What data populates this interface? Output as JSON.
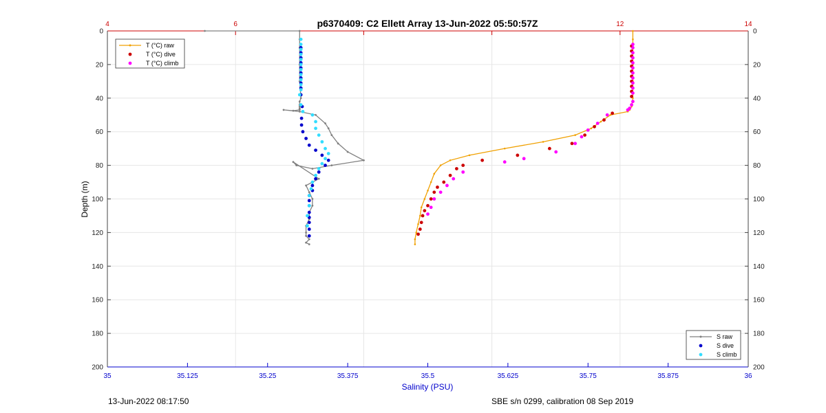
{
  "chart_data": {
    "type": "scatter",
    "title": "p6370409: C2 Ellett Array 13-Jun-2022 05:50:57Z",
    "xlabel": "Salinity (PSU)",
    "ylabel": "Depth (m)",
    "x_bottom_range": [
      35,
      36
    ],
    "x_bottom_ticks": [
      "35",
      "35.125",
      "35.25",
      "35.375",
      "35.5",
      "35.625",
      "35.75",
      "35.875",
      "36"
    ],
    "x_top_range": [
      4,
      14
    ],
    "x_top_ticks": [
      "4",
      "6",
      "12",
      "14"
    ],
    "y_range": [
      0,
      200
    ],
    "y_reversed": true,
    "y_ticks": [
      "0",
      "20",
      "40",
      "60",
      "80",
      "100",
      "120",
      "140",
      "160",
      "180",
      "200"
    ],
    "grid": true,
    "temperature_legend": {
      "position": "top-left",
      "entries": [
        "T (°C) raw",
        "T (°C) dive",
        "T (°C) climb"
      ]
    },
    "salinity_legend": {
      "position": "bottom-right",
      "entries": [
        "S raw",
        "S dive",
        "S climb"
      ]
    },
    "series": [
      {
        "name": "T (°C) raw",
        "axis": "top",
        "color": "#f0a000",
        "style": "line",
        "x": [
          12.2,
          12.2,
          12.2,
          12.2,
          12.2,
          12.2,
          12.18,
          12.15,
          12.12,
          11.85,
          11.7,
          11.55,
          11.3,
          10.8,
          10.2,
          9.65,
          9.35,
          9.2,
          9.1,
          9.05,
          9.0,
          8.95,
          8.9,
          8.88,
          8.85,
          8.82,
          8.8,
          8.8
        ],
        "y": [
          0,
          5,
          10,
          20,
          30,
          40,
          45,
          47,
          48,
          50,
          54,
          58,
          62,
          66,
          70,
          74,
          77,
          80,
          85,
          90,
          95,
          100,
          105,
          110,
          115,
          120,
          124,
          127
        ]
      },
      {
        "name": "T (°C) dive",
        "axis": "top",
        "color": "#cc0000",
        "style": "dots",
        "x": [
          12.18,
          12.18,
          12.18,
          12.18,
          12.18,
          12.18,
          12.18,
          12.18,
          12.18,
          12.18,
          12.18,
          11.88,
          11.75,
          11.6,
          11.45,
          11.25,
          10.9,
          10.4,
          9.85,
          9.55,
          9.45,
          9.35,
          9.25,
          9.15,
          9.1,
          9.05,
          9.0,
          8.95,
          8.92,
          8.9,
          8.88,
          8.85
        ],
        "y": [
          9,
          12,
          15,
          18,
          21,
          24,
          27,
          30,
          33,
          36,
          39,
          49,
          53,
          57,
          62,
          67,
          70,
          74,
          77,
          80,
          82,
          86,
          90,
          93,
          96,
          100,
          104,
          107,
          110,
          114,
          118,
          121
        ]
      },
      {
        "name": "T (°C) climb",
        "axis": "top",
        "color": "#ff00ff",
        "style": "dots",
        "x": [
          12.2,
          12.2,
          12.2,
          12.2,
          12.2,
          12.2,
          12.2,
          12.2,
          12.2,
          12.2,
          12.2,
          12.2,
          12.18,
          12.15,
          12.12,
          11.8,
          11.65,
          11.5,
          11.4,
          11.3,
          11.0,
          10.5,
          10.2,
          9.55,
          9.4,
          9.3,
          9.2,
          9.1,
          9.05,
          9.0
        ],
        "y": [
          8,
          10,
          13,
          16,
          19,
          22,
          25,
          28,
          31,
          34,
          37,
          42,
          44,
          46,
          47,
          50,
          55,
          59,
          63,
          67,
          72,
          76,
          78,
          84,
          88,
          92,
          96,
          100,
          105,
          109
        ]
      },
      {
        "name": "S raw",
        "axis": "bottom",
        "color": "#808080",
        "style": "line-markers",
        "x": [
          35.152,
          35.3,
          35.3,
          35.3,
          35.3,
          35.3,
          35.302,
          35.3,
          35.3,
          35.3,
          35.3,
          35.3,
          35.3,
          35.29,
          35.275,
          35.3,
          35.325,
          35.34,
          35.345,
          35.35,
          35.36,
          35.375,
          35.4,
          35.35,
          35.32,
          35.295,
          35.29,
          35.33,
          35.31,
          35.315,
          35.32,
          35.32,
          35.315,
          35.315,
          35.31,
          35.31,
          35.31,
          35.315,
          35.31,
          35.315
        ],
        "y": [
          0,
          0,
          5,
          10,
          20,
          30,
          40,
          42,
          44,
          45,
          46,
          46.5,
          47,
          47.5,
          47,
          48,
          50,
          55,
          58,
          62,
          67,
          72,
          77,
          80,
          82,
          80,
          78,
          88,
          92,
          96,
          100,
          104,
          108,
          112,
          116,
          120,
          122,
          124,
          126,
          127
        ]
      },
      {
        "name": "S dive",
        "axis": "bottom",
        "color": "#0000cc",
        "style": "dots",
        "x": [
          35.302,
          35.302,
          35.302,
          35.302,
          35.302,
          35.302,
          35.302,
          35.302,
          35.302,
          35.302,
          35.304,
          35.303,
          35.303,
          35.305,
          35.31,
          35.315,
          35.325,
          35.335,
          35.345,
          35.34,
          35.33,
          35.325,
          35.32,
          35.32,
          35.315,
          35.315,
          35.315,
          35.315,
          35.315,
          35.315,
          35.315,
          35.315
        ],
        "y": [
          10,
          13,
          16,
          19,
          22,
          25,
          28,
          31,
          34,
          38,
          45,
          52,
          56,
          60,
          64,
          68,
          71,
          74,
          77,
          80,
          84,
          88,
          92,
          95,
          98,
          101,
          104,
          108,
          111,
          114,
          118,
          122
        ]
      },
      {
        "name": "S climb",
        "axis": "bottom",
        "color": "#33ddff",
        "style": "dots",
        "x": [
          35.302,
          35.302,
          35.302,
          35.302,
          35.302,
          35.302,
          35.302,
          35.302,
          35.302,
          35.302,
          35.302,
          35.3,
          35.302,
          35.305,
          35.32,
          35.325,
          35.325,
          35.33,
          35.335,
          35.34,
          35.345,
          35.34,
          35.335,
          35.33,
          35.325,
          35.32,
          35.318,
          35.315,
          35.315,
          35.312,
          35.312
        ],
        "y": [
          5,
          8,
          11,
          14,
          17,
          20,
          23,
          26,
          29,
          32,
          35,
          38,
          44,
          48,
          50,
          54,
          58,
          62,
          66,
          70,
          73,
          76,
          79,
          82,
          86,
          90,
          94,
          98,
          104,
          110,
          116
        ]
      }
    ]
  },
  "footer": {
    "left": "13-Jun-2022 08:17:50",
    "right": "SBE s/n 0299, calibration 08 Sep 2019"
  }
}
